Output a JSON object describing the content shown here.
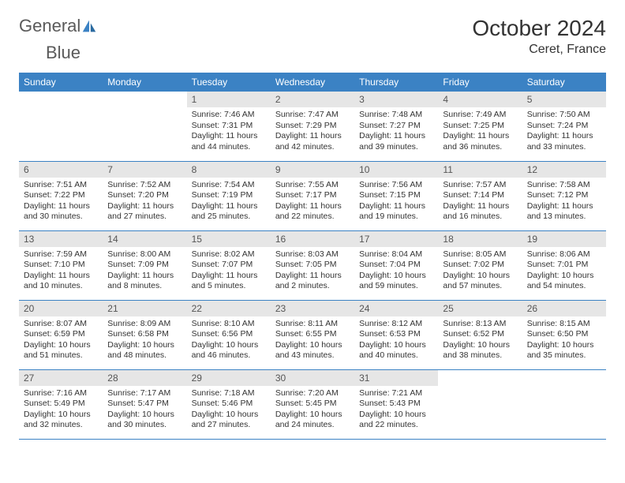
{
  "logo": {
    "text1": "General",
    "text2": "Blue"
  },
  "title": "October 2024",
  "location": "Ceret, France",
  "colors": {
    "header_bg": "#3b82c4",
    "header_text": "#ffffff",
    "daynum_bg": "#e6e6e6",
    "border": "#3b82c4",
    "title_color": "#333333"
  },
  "day_names": [
    "Sunday",
    "Monday",
    "Tuesday",
    "Wednesday",
    "Thursday",
    "Friday",
    "Saturday"
  ],
  "weeks": [
    [
      null,
      null,
      {
        "n": "1",
        "sr": "Sunrise: 7:46 AM",
        "ss": "Sunset: 7:31 PM",
        "dl": "Daylight: 11 hours and 44 minutes."
      },
      {
        "n": "2",
        "sr": "Sunrise: 7:47 AM",
        "ss": "Sunset: 7:29 PM",
        "dl": "Daylight: 11 hours and 42 minutes."
      },
      {
        "n": "3",
        "sr": "Sunrise: 7:48 AM",
        "ss": "Sunset: 7:27 PM",
        "dl": "Daylight: 11 hours and 39 minutes."
      },
      {
        "n": "4",
        "sr": "Sunrise: 7:49 AM",
        "ss": "Sunset: 7:25 PM",
        "dl": "Daylight: 11 hours and 36 minutes."
      },
      {
        "n": "5",
        "sr": "Sunrise: 7:50 AM",
        "ss": "Sunset: 7:24 PM",
        "dl": "Daylight: 11 hours and 33 minutes."
      }
    ],
    [
      {
        "n": "6",
        "sr": "Sunrise: 7:51 AM",
        "ss": "Sunset: 7:22 PM",
        "dl": "Daylight: 11 hours and 30 minutes."
      },
      {
        "n": "7",
        "sr": "Sunrise: 7:52 AM",
        "ss": "Sunset: 7:20 PM",
        "dl": "Daylight: 11 hours and 27 minutes."
      },
      {
        "n": "8",
        "sr": "Sunrise: 7:54 AM",
        "ss": "Sunset: 7:19 PM",
        "dl": "Daylight: 11 hours and 25 minutes."
      },
      {
        "n": "9",
        "sr": "Sunrise: 7:55 AM",
        "ss": "Sunset: 7:17 PM",
        "dl": "Daylight: 11 hours and 22 minutes."
      },
      {
        "n": "10",
        "sr": "Sunrise: 7:56 AM",
        "ss": "Sunset: 7:15 PM",
        "dl": "Daylight: 11 hours and 19 minutes."
      },
      {
        "n": "11",
        "sr": "Sunrise: 7:57 AM",
        "ss": "Sunset: 7:14 PM",
        "dl": "Daylight: 11 hours and 16 minutes."
      },
      {
        "n": "12",
        "sr": "Sunrise: 7:58 AM",
        "ss": "Sunset: 7:12 PM",
        "dl": "Daylight: 11 hours and 13 minutes."
      }
    ],
    [
      {
        "n": "13",
        "sr": "Sunrise: 7:59 AM",
        "ss": "Sunset: 7:10 PM",
        "dl": "Daylight: 11 hours and 10 minutes."
      },
      {
        "n": "14",
        "sr": "Sunrise: 8:00 AM",
        "ss": "Sunset: 7:09 PM",
        "dl": "Daylight: 11 hours and 8 minutes."
      },
      {
        "n": "15",
        "sr": "Sunrise: 8:02 AM",
        "ss": "Sunset: 7:07 PM",
        "dl": "Daylight: 11 hours and 5 minutes."
      },
      {
        "n": "16",
        "sr": "Sunrise: 8:03 AM",
        "ss": "Sunset: 7:05 PM",
        "dl": "Daylight: 11 hours and 2 minutes."
      },
      {
        "n": "17",
        "sr": "Sunrise: 8:04 AM",
        "ss": "Sunset: 7:04 PM",
        "dl": "Daylight: 10 hours and 59 minutes."
      },
      {
        "n": "18",
        "sr": "Sunrise: 8:05 AM",
        "ss": "Sunset: 7:02 PM",
        "dl": "Daylight: 10 hours and 57 minutes."
      },
      {
        "n": "19",
        "sr": "Sunrise: 8:06 AM",
        "ss": "Sunset: 7:01 PM",
        "dl": "Daylight: 10 hours and 54 minutes."
      }
    ],
    [
      {
        "n": "20",
        "sr": "Sunrise: 8:07 AM",
        "ss": "Sunset: 6:59 PM",
        "dl": "Daylight: 10 hours and 51 minutes."
      },
      {
        "n": "21",
        "sr": "Sunrise: 8:09 AM",
        "ss": "Sunset: 6:58 PM",
        "dl": "Daylight: 10 hours and 48 minutes."
      },
      {
        "n": "22",
        "sr": "Sunrise: 8:10 AM",
        "ss": "Sunset: 6:56 PM",
        "dl": "Daylight: 10 hours and 46 minutes."
      },
      {
        "n": "23",
        "sr": "Sunrise: 8:11 AM",
        "ss": "Sunset: 6:55 PM",
        "dl": "Daylight: 10 hours and 43 minutes."
      },
      {
        "n": "24",
        "sr": "Sunrise: 8:12 AM",
        "ss": "Sunset: 6:53 PM",
        "dl": "Daylight: 10 hours and 40 minutes."
      },
      {
        "n": "25",
        "sr": "Sunrise: 8:13 AM",
        "ss": "Sunset: 6:52 PM",
        "dl": "Daylight: 10 hours and 38 minutes."
      },
      {
        "n": "26",
        "sr": "Sunrise: 8:15 AM",
        "ss": "Sunset: 6:50 PM",
        "dl": "Daylight: 10 hours and 35 minutes."
      }
    ],
    [
      {
        "n": "27",
        "sr": "Sunrise: 7:16 AM",
        "ss": "Sunset: 5:49 PM",
        "dl": "Daylight: 10 hours and 32 minutes."
      },
      {
        "n": "28",
        "sr": "Sunrise: 7:17 AM",
        "ss": "Sunset: 5:47 PM",
        "dl": "Daylight: 10 hours and 30 minutes."
      },
      {
        "n": "29",
        "sr": "Sunrise: 7:18 AM",
        "ss": "Sunset: 5:46 PM",
        "dl": "Daylight: 10 hours and 27 minutes."
      },
      {
        "n": "30",
        "sr": "Sunrise: 7:20 AM",
        "ss": "Sunset: 5:45 PM",
        "dl": "Daylight: 10 hours and 24 minutes."
      },
      {
        "n": "31",
        "sr": "Sunrise: 7:21 AM",
        "ss": "Sunset: 5:43 PM",
        "dl": "Daylight: 10 hours and 22 minutes."
      },
      null,
      null
    ]
  ]
}
